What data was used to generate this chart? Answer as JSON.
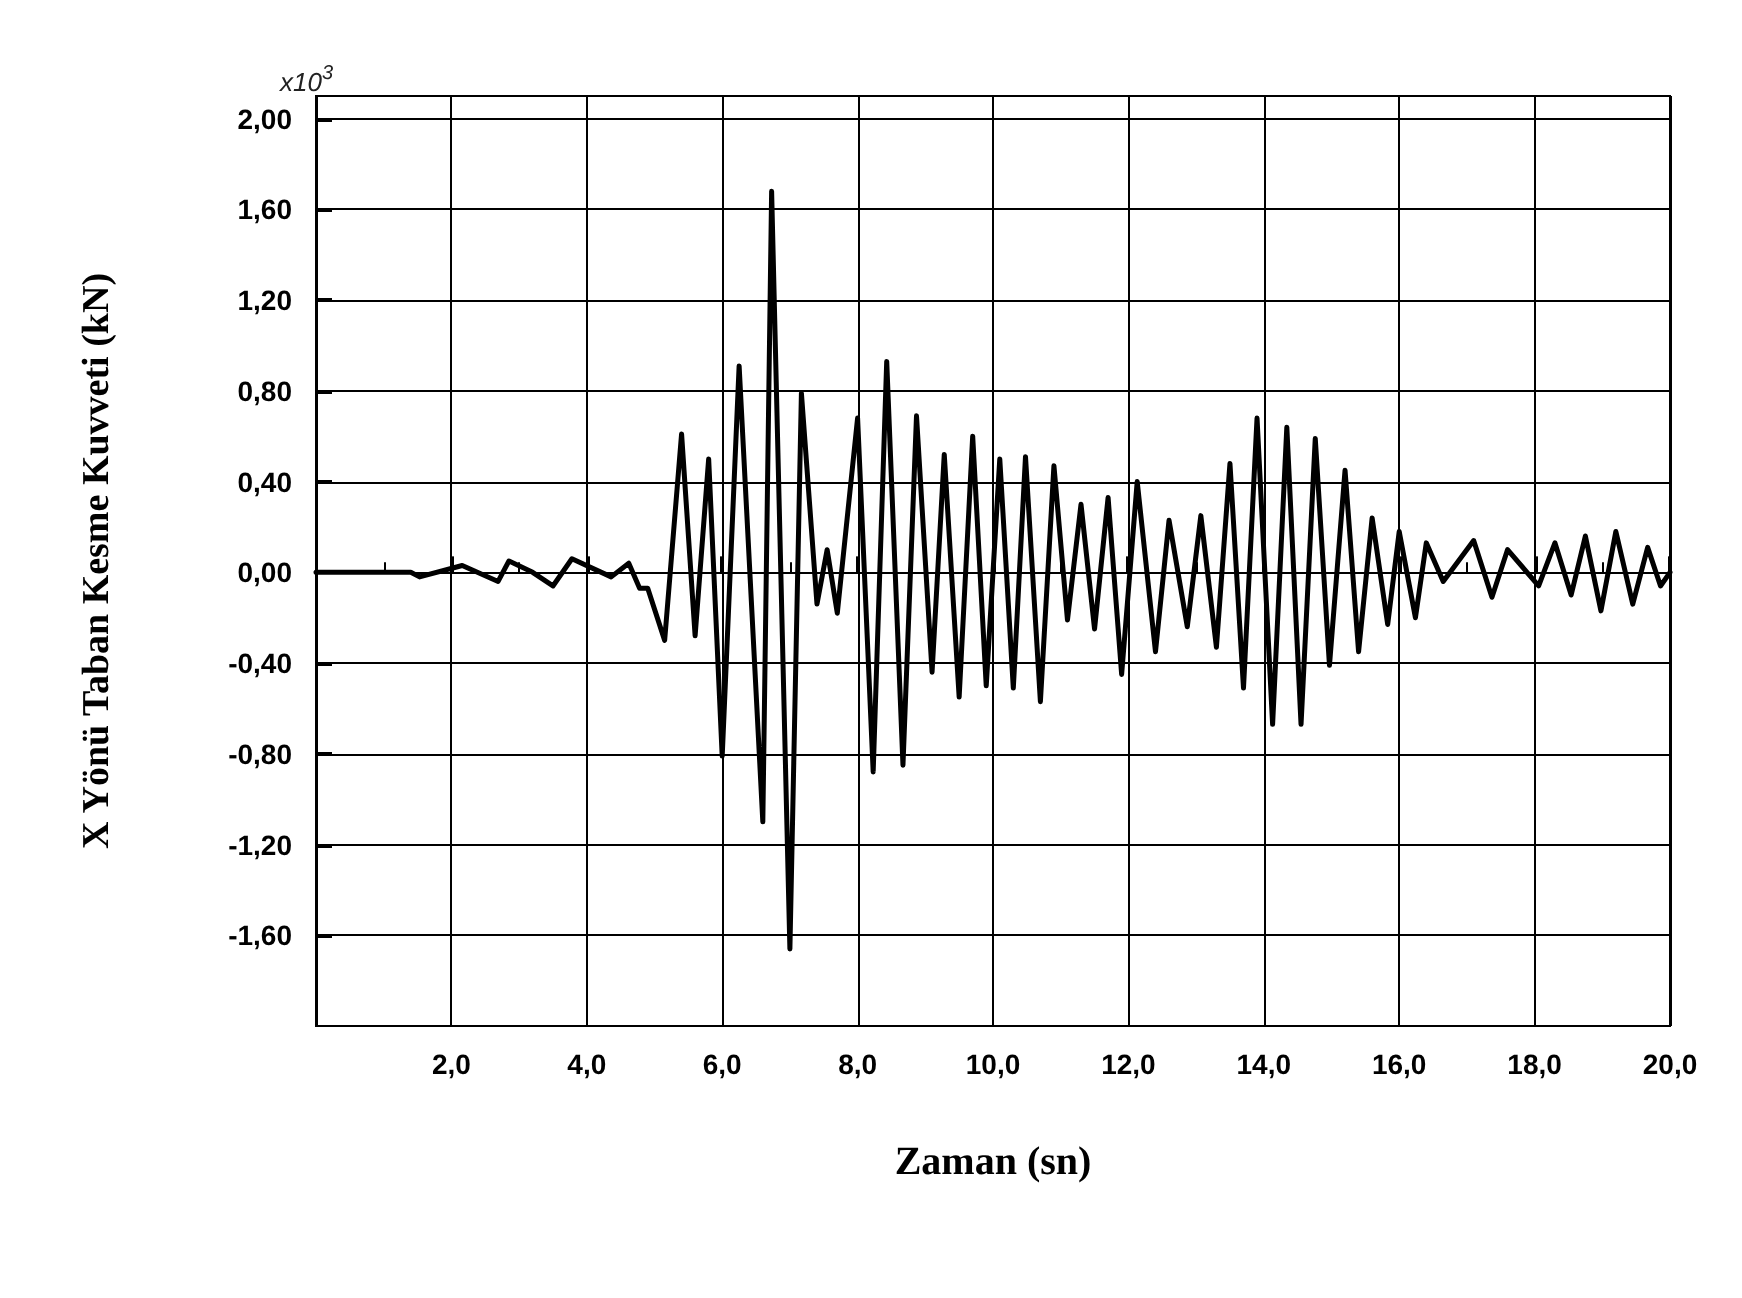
{
  "chart_data": {
    "type": "line",
    "xlabel": "Zaman (sn)",
    "ylabel": "X Yönü Taban Kesme Kuvveti (kN)",
    "annotations": [
      "x10$^{3}$"
    ],
    "x": [
      0,
      1.4,
      1.53,
      2.16,
      2.69,
      2.85,
      3.2,
      3.5,
      3.78,
      4.36,
      4.62,
      4.78,
      4.9,
      5.15,
      5.4,
      5.6,
      5.8,
      6.0,
      6.25,
      6.6,
      6.73,
      7.0,
      7.17,
      7.4,
      7.55,
      7.7,
      8.0,
      8.23,
      8.43,
      8.67,
      8.87,
      9.1,
      9.28,
      9.5,
      9.7,
      9.9,
      10.1,
      10.3,
      10.48,
      10.7,
      10.9,
      11.1,
      11.3,
      11.5,
      11.7,
      11.9,
      12.13,
      12.4,
      12.6,
      12.87,
      13.07,
      13.3,
      13.5,
      13.7,
      13.9,
      14.13,
      14.34,
      14.55,
      14.76,
      14.97,
      15.2,
      15.4,
      15.6,
      15.83,
      16.0,
      16.24,
      16.4,
      16.65,
      17.1,
      17.37,
      17.6,
      18.06,
      18.3,
      18.54,
      18.75,
      18.98,
      19.2,
      19.45,
      19.67,
      19.86,
      20.0
    ],
    "series": [
      {
        "color": "#000000",
        "values": [
          0,
          0,
          -0.02,
          0.03,
          -0.04,
          0.05,
          0,
          -0.06,
          0.06,
          -0.02,
          0.04,
          -0.07,
          -0.07,
          -0.3,
          0.61,
          -0.28,
          0.5,
          -0.81,
          0.91,
          -1.1,
          1.68,
          -1.66,
          0.79,
          -0.14,
          0.1,
          -0.18,
          0.68,
          -0.88,
          0.93,
          -0.85,
          0.69,
          -0.44,
          0.52,
          -0.55,
          0.6,
          -0.5,
          0.5,
          -0.51,
          0.51,
          -0.57,
          0.47,
          -0.21,
          0.3,
          -0.25,
          0.33,
          -0.45,
          0.4,
          -0.35,
          0.23,
          -0.24,
          0.25,
          -0.33,
          0.48,
          -0.51,
          0.68,
          -0.67,
          0.64,
          -0.67,
          0.59,
          -0.41,
          0.45,
          -0.35,
          0.24,
          -0.23,
          0.18,
          -0.2,
          0.13,
          -0.04,
          0.14,
          -0.11,
          0.1,
          -0.06,
          0.13,
          -0.1,
          0.16,
          -0.17,
          0.18,
          -0.14,
          0.11,
          -0.06,
          0
        ]
      }
    ],
    "xlim": [
      0,
      20
    ],
    "xticks": [
      {
        "value": 2,
        "label": "2,0"
      },
      {
        "value": 4,
        "label": "4,0"
      },
      {
        "value": 6,
        "label": "6,0"
      },
      {
        "value": 8,
        "label": "8,0"
      },
      {
        "value": 10,
        "label": "10,0"
      },
      {
        "value": 12,
        "label": "12,0"
      },
      {
        "value": 14,
        "label": "14,0"
      },
      {
        "value": 16,
        "label": "16,0"
      },
      {
        "value": 18,
        "label": "18,0"
      },
      {
        "value": 20,
        "label": "20,0"
      }
    ],
    "ylim": [
      -2,
      2.1
    ],
    "yticks": [
      {
        "value": -1.6,
        "label": "-1,60"
      },
      {
        "value": -1.2,
        "label": "-1,20"
      },
      {
        "value": -0.8,
        "label": "-0,80"
      },
      {
        "value": -0.4,
        "label": "-0,40"
      },
      {
        "value": 0,
        "label": "0,00"
      },
      {
        "value": 0.4,
        "label": "0,40"
      },
      {
        "value": 0.8,
        "label": "0,80"
      },
      {
        "value": 1.2,
        "label": "1,20"
      },
      {
        "value": 1.6,
        "label": "1,60"
      },
      {
        "value": 2,
        "label": "2,00"
      }
    ],
    "grid": true,
    "marker": "none",
    "line_style": "solid"
  }
}
